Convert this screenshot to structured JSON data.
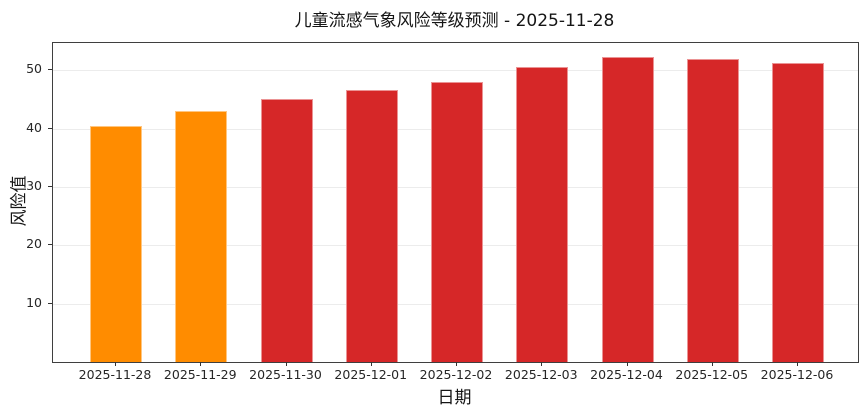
{
  "chart_data": {
    "type": "bar",
    "title": "儿童流感气象风险等级预测 - 2025-11-28",
    "xlabel": "日期",
    "ylabel": "风险值",
    "categories": [
      "2025-11-28",
      "2025-11-29",
      "2025-11-30",
      "2025-12-01",
      "2025-12-02",
      "2025-12-03",
      "2025-12-04",
      "2025-12-05",
      "2025-12-06"
    ],
    "values": [
      40.5,
      43.0,
      45.1,
      46.6,
      48.0,
      50.6,
      52.3,
      51.9,
      51.3
    ],
    "bar_colors": [
      "#FF8C00",
      "#FF8C00",
      "#D62728",
      "#D62728",
      "#D62728",
      "#D62728",
      "#D62728",
      "#D62728",
      "#D62728"
    ],
    "yticks": [
      10,
      20,
      30,
      40,
      50
    ],
    "ylim": [
      0,
      54.7
    ],
    "grid": "horizontal",
    "legend": "none"
  },
  "colors": {
    "orange_bar": "#FF8C00",
    "red_bar": "#D62728",
    "gridline": "#ececec",
    "spine": "#3f3f3f",
    "text": "#151515"
  }
}
